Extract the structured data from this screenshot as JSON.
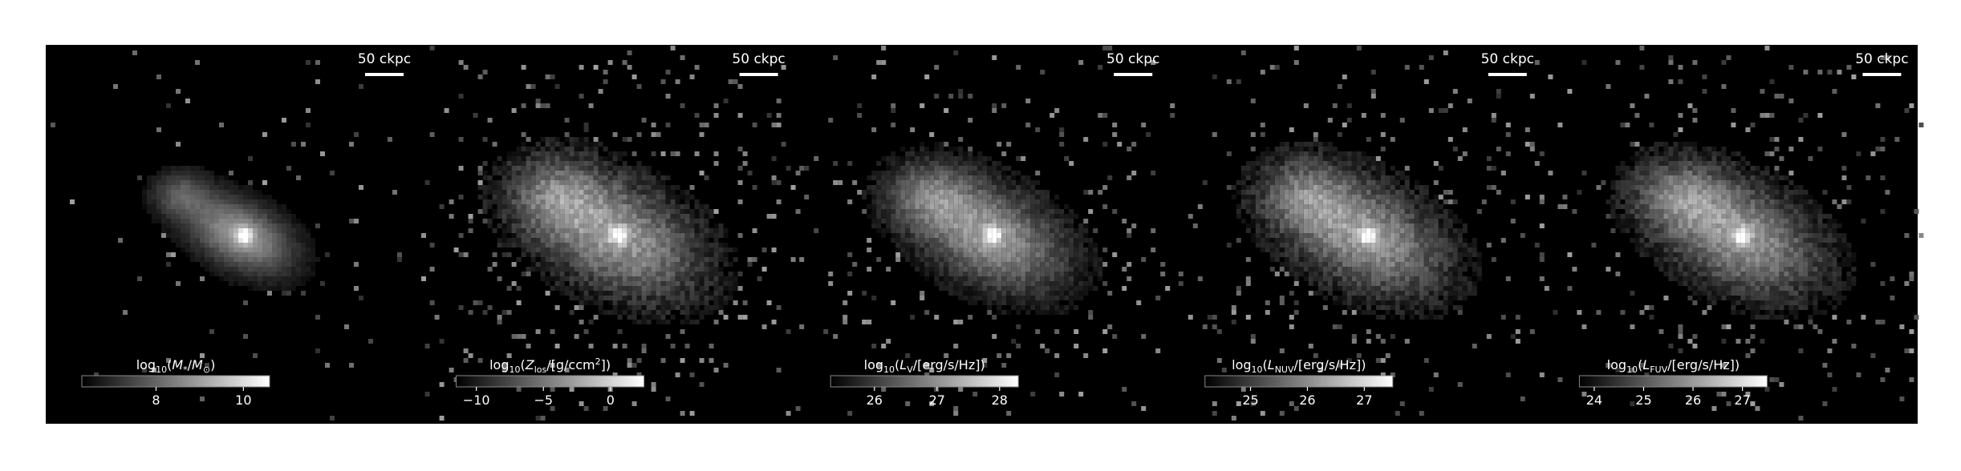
{
  "chart_data": [
    {
      "type": "heatmap",
      "scalebar": "50 ckpc",
      "colorbar": {
        "label_parts": [
          [
            "log",
            ""
          ],
          [
            "10",
            "sub"
          ],
          [
            "(",
            ""
          ],
          [
            "M",
            "it"
          ],
          [
            "*",
            "sub"
          ],
          [
            "/",
            ""
          ],
          [
            "M",
            "it"
          ],
          [
            "⊙",
            "sub"
          ],
          [
            ")",
            ""
          ]
        ],
        "range": [
          6.3,
          10.6
        ],
        "ticks": [
          8,
          10
        ],
        "tick_labels": [
          "8",
          "10"
        ]
      },
      "peak": 10.5,
      "extent": 0.62,
      "noise": 0.25
    },
    {
      "type": "heatmap",
      "scalebar": "50 ckpc",
      "colorbar": {
        "label_parts": [
          [
            "log",
            ""
          ],
          [
            "10",
            "sub"
          ],
          [
            "(",
            ""
          ],
          [
            "Z",
            "it"
          ],
          [
            "los",
            "sub"
          ],
          [
            "/[g/ccm",
            ""
          ],
          [
            "2",
            "sup"
          ],
          [
            "])",
            ""
          ]
        ],
        "range": [
          -11.5,
          2.5
        ],
        "ticks": [
          -10,
          -5,
          0
        ],
        "tick_labels": [
          "−10",
          "−5",
          "0"
        ]
      },
      "peak": 2.3,
      "extent": 1.0,
      "noise": 0.8
    },
    {
      "type": "heatmap",
      "scalebar": "50 ckpc",
      "colorbar": {
        "label_parts": [
          [
            "log",
            ""
          ],
          [
            "10",
            "sub"
          ],
          [
            "(",
            ""
          ],
          [
            "L",
            "it"
          ],
          [
            "V",
            "sub"
          ],
          [
            "/[erg/s/Hz])",
            ""
          ]
        ],
        "range": [
          25.3,
          28.3
        ],
        "ticks": [
          26,
          27,
          28
        ],
        "tick_labels": [
          "26",
          "27",
          "28"
        ]
      },
      "peak": 28.2,
      "extent": 0.9,
      "noise": 0.6
    },
    {
      "type": "heatmap",
      "scalebar": "50 ckpc",
      "colorbar": {
        "label_parts": [
          [
            "log",
            ""
          ],
          [
            "10",
            "sub"
          ],
          [
            "(",
            ""
          ],
          [
            "L",
            "it"
          ],
          [
            "NUV",
            "sub"
          ],
          [
            "/[erg/s/Hz])",
            ""
          ]
        ],
        "range": [
          24.2,
          27.5
        ],
        "ticks": [
          25,
          26,
          27
        ],
        "tick_labels": [
          "25",
          "26",
          "27"
        ]
      },
      "peak": 27.4,
      "extent": 0.95,
      "noise": 0.75
    },
    {
      "type": "heatmap",
      "scalebar": "50 ckpc",
      "colorbar": {
        "label_parts": [
          [
            "log",
            ""
          ],
          [
            "10",
            "sub"
          ],
          [
            "(",
            ""
          ],
          [
            "L",
            "it"
          ],
          [
            "FUV",
            "sub"
          ],
          [
            "/[erg/s/Hz])",
            ""
          ]
        ],
        "range": [
          23.7,
          27.5
        ],
        "ticks": [
          24,
          25,
          26,
          27
        ],
        "tick_labels": [
          "24",
          "25",
          "26",
          "27"
        ]
      },
      "peak": 27.4,
      "extent": 0.95,
      "noise": 0.75
    }
  ]
}
